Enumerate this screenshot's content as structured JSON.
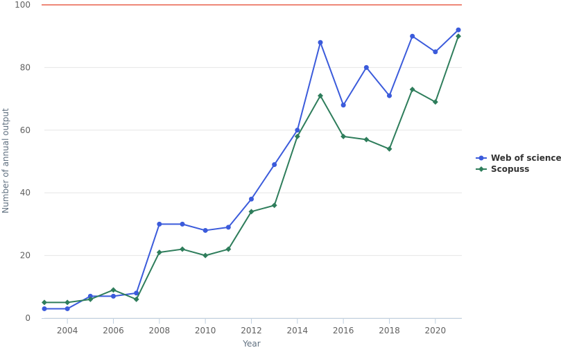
{
  "chart_data": {
    "type": "line",
    "xlabel": "Year",
    "ylabel": "Number of annual output",
    "xlim": [
      2003,
      2021
    ],
    "ylim": [
      0,
      100
    ],
    "x_ticks": [
      "2004",
      "2006",
      "2008",
      "2010",
      "2012",
      "2014",
      "2016",
      "2018",
      "2020"
    ],
    "y_ticks": [
      "0",
      "20",
      "40",
      "60",
      "80",
      "100"
    ],
    "x": [
      2003,
      2004,
      2005,
      2006,
      2007,
      2008,
      2009,
      2010,
      2011,
      2012,
      2013,
      2014,
      2015,
      2016,
      2017,
      2018,
      2019,
      2020,
      2021
    ],
    "series": [
      {
        "name": "Web of science",
        "color": "#3b5bdb",
        "marker": "circle",
        "values": [
          3,
          3,
          7,
          7,
          8,
          30,
          30,
          28,
          29,
          38,
          49,
          60,
          88,
          68,
          80,
          71,
          90,
          85,
          92
        ]
      },
      {
        "name": "Scopuss",
        "color": "#2e7d5b",
        "marker": "diamond",
        "values": [
          5,
          5,
          6,
          9,
          6,
          21,
          22,
          20,
          22,
          34,
          36,
          58,
          71,
          58,
          57,
          54,
          73,
          69,
          90
        ]
      }
    ],
    "reference_line": {
      "y": 100,
      "color": "#e8604c"
    },
    "grid": true,
    "legend_position": "right"
  }
}
